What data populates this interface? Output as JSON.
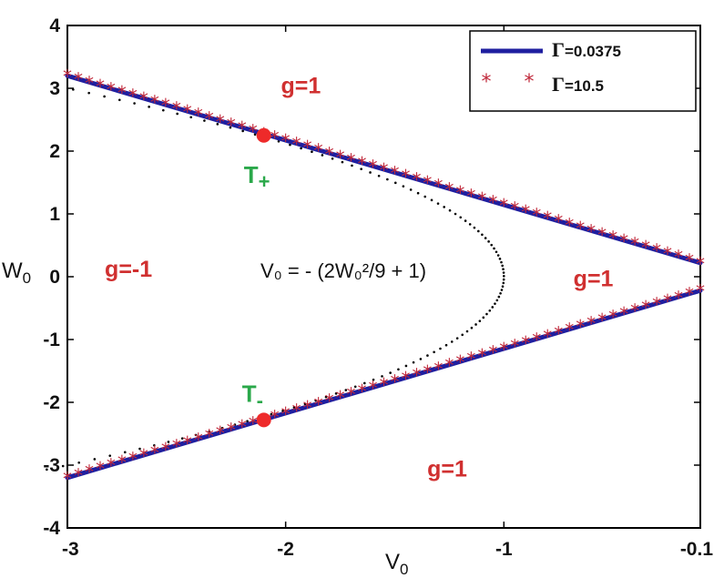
{
  "chart_data": {
    "type": "line",
    "xlabel": "V",
    "xlabel_sub": "0",
    "ylabel": "W",
    "ylabel_sub": "0",
    "xlim": [
      -3,
      -0.1
    ],
    "ylim": [
      -4,
      4
    ],
    "xticks": [
      {
        "value": -3,
        "label": "-3"
      },
      {
        "value": -2,
        "label": "-2"
      },
      {
        "value": -1,
        "label": "-1"
      },
      {
        "value": -0.1,
        "label": "-0.1"
      }
    ],
    "yticks": [
      {
        "value": 4,
        "label": "4"
      },
      {
        "value": 3,
        "label": "3"
      },
      {
        "value": 2,
        "label": "2"
      },
      {
        "value": 1,
        "label": "1"
      },
      {
        "value": 0,
        "label": "0"
      },
      {
        "value": -1,
        "label": "-1"
      },
      {
        "value": -2,
        "label": "-2"
      },
      {
        "value": -3,
        "label": "-3"
      },
      {
        "value": -4,
        "label": "-4"
      }
    ],
    "series": [
      {
        "name": "Γ=0.0375",
        "style": "line",
        "color": "#1f1fa0",
        "branches": [
          {
            "x": [
              -3,
              -0.1
            ],
            "y": [
              3.2,
              0.22
            ]
          },
          {
            "x": [
              -3,
              -0.1
            ],
            "y": [
              -3.2,
              -0.22
            ]
          }
        ]
      },
      {
        "name": "Γ=10.5",
        "style": "star",
        "color": "#c0283a",
        "branches": [
          {
            "x": [
              -3,
              -0.1
            ],
            "y": [
              3.2,
              0.22
            ]
          },
          {
            "x": [
              -3,
              -0.1
            ],
            "y": [
              -3.2,
              -0.22
            ]
          }
        ]
      }
    ],
    "dotted_curve": {
      "formula": "V0 = -(2W0^2/9 + 1)",
      "wrange": [
        -3.07,
        3.07
      ]
    },
    "points": [
      {
        "label": "T",
        "sub": "+",
        "x": -2.1,
        "y": 2.25
      },
      {
        "label": "T",
        "sub": "-",
        "x": -2.1,
        "y": -2.28
      }
    ],
    "regions": [
      {
        "text": "g=1",
        "x": -1.93,
        "y": 3.05
      },
      {
        "text": "g=-1",
        "x": -2.72,
        "y": 0.13
      },
      {
        "text": "g=1",
        "x": -0.59,
        "y": -0.02
      },
      {
        "text": "g=1",
        "x": -1.26,
        "y": -3.05
      }
    ],
    "formula_label": "V₀ = - (2W₀²/9 + 1)",
    "legend": {
      "placement": "top-right",
      "entries": [
        {
          "symbol": "Γ",
          "text": "=0.0375"
        },
        {
          "symbol": "Γ",
          "text": "=10.5"
        }
      ]
    }
  }
}
